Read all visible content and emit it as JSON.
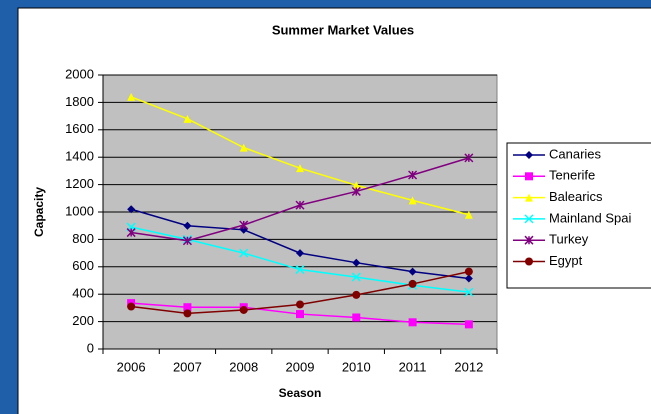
{
  "chart_data": {
    "type": "line",
    "title": "Summer Market Values",
    "x_label": "Season",
    "y_label": "Capacity",
    "categories": [
      "2006",
      "2007",
      "2008",
      "2009",
      "2010",
      "2011",
      "2012"
    ],
    "series": [
      {
        "name": "Canaries",
        "color": "#000080",
        "marker": "diamond",
        "values": [
          1020,
          900,
          870,
          700,
          630,
          565,
          515
        ]
      },
      {
        "name": "Tenerife",
        "color": "#ff00ff",
        "marker": "square",
        "values": [
          335,
          305,
          305,
          255,
          230,
          195,
          180
        ]
      },
      {
        "name": "Balearics",
        "color": "#ffff00",
        "marker": "triangle",
        "values": [
          1840,
          1680,
          1470,
          1320,
          1195,
          1085,
          980
        ]
      },
      {
        "name": "Mainland Spai",
        "color": "#00ffff",
        "marker": "x",
        "values": [
          890,
          800,
          700,
          580,
          525,
          465,
          415
        ]
      },
      {
        "name": "Turkey",
        "color": "#800080",
        "marker": "star",
        "values": [
          850,
          790,
          905,
          1050,
          1150,
          1270,
          1395
        ]
      },
      {
        "name": "Egypt",
        "color": "#800000",
        "marker": "circle",
        "values": [
          310,
          260,
          285,
          325,
          395,
          475,
          565
        ]
      }
    ],
    "ylim": [
      0,
      2000
    ],
    "yticks": [
      0,
      200,
      400,
      600,
      800,
      1000,
      1200,
      1400,
      1600,
      1800,
      2000
    ],
    "grid": true,
    "legend": "right"
  }
}
